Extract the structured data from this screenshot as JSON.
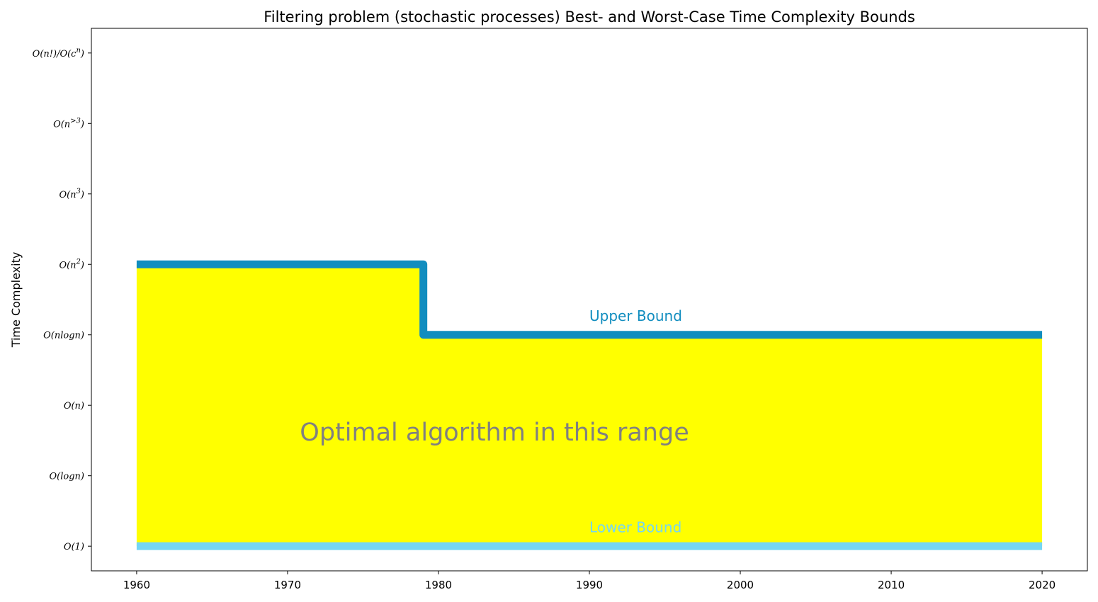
{
  "chart_data": {
    "type": "line",
    "title": "Filtering problem (stochastic processes) Best- and Worst-Case Time Complexity Bounds",
    "xlabel": "",
    "ylabel": "Time Complexity",
    "xlim": [
      1957,
      2023
    ],
    "ylim": [
      -0.35,
      7.35
    ],
    "x_ticks": [
      1960,
      1970,
      1980,
      1990,
      2000,
      2010,
      2020
    ],
    "y_ticks": [
      {
        "value": 0,
        "label": "O(1)"
      },
      {
        "value": 1,
        "label": "O(logn)"
      },
      {
        "value": 2,
        "label": "O(n)"
      },
      {
        "value": 3,
        "label": "O(nlogn)"
      },
      {
        "value": 4,
        "label": "O(n^2)"
      },
      {
        "value": 5,
        "label": "O(n^3)"
      },
      {
        "value": 6,
        "label": "O(n^>3)"
      },
      {
        "value": 7,
        "label": "O(n!)/O(c^n)"
      }
    ],
    "series": [
      {
        "name": "Upper Bound",
        "step": "post",
        "color": "#118dbf",
        "points": [
          {
            "x": 1960,
            "y": 4
          },
          {
            "x": 1979,
            "y": 3
          },
          {
            "x": 2020,
            "y": 3
          }
        ]
      },
      {
        "name": "Lower Bound",
        "step": "post",
        "color": "#74d6f5",
        "points": [
          {
            "x": 1960,
            "y": 0
          },
          {
            "x": 2020,
            "y": 0
          }
        ]
      }
    ],
    "fill_between": {
      "color": "#ffff00",
      "between": [
        "Upper Bound",
        "Lower Bound"
      ]
    },
    "annotations": [
      {
        "text": "Upper Bound",
        "x": 1990,
        "y": 3.2,
        "color": "#118dbf"
      },
      {
        "text": "Lower Bound",
        "x": 1990,
        "y": 0.2,
        "color": "#74d6f5"
      },
      {
        "text": "Optimal algorithm in this range",
        "x": 1991,
        "y": 1.5,
        "color": "#808080"
      }
    ],
    "grid": false,
    "legend": "none"
  }
}
